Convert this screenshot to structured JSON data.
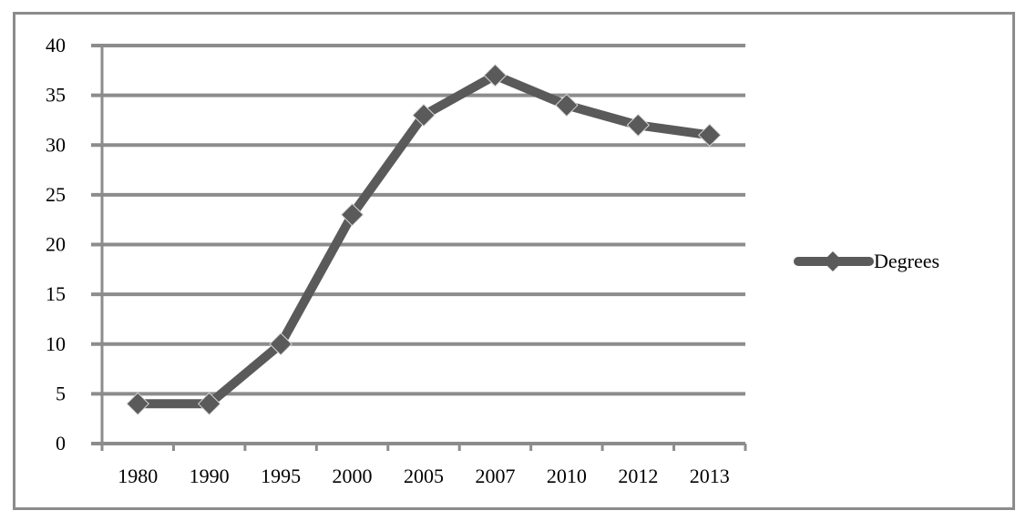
{
  "chart_data": {
    "type": "line",
    "categories": [
      "1980",
      "1990",
      "1995",
      "2000",
      "2005",
      "2007",
      "2010",
      "2012",
      "2013"
    ],
    "series": [
      {
        "name": "Degrees",
        "values": [
          4,
          4,
          10,
          23,
          33,
          37,
          34,
          32,
          31
        ]
      }
    ],
    "y_ticks": [
      "0",
      "5",
      "10",
      "15",
      "20",
      "25",
      "30",
      "35",
      "40"
    ],
    "ylim": [
      0,
      40
    ],
    "grid": true,
    "legend_position": "right",
    "colors": {
      "series": "#5a5a5a",
      "grid": "#8c8c8c",
      "axis": "#8c8c8c",
      "frame": "#8c8c8c"
    }
  }
}
